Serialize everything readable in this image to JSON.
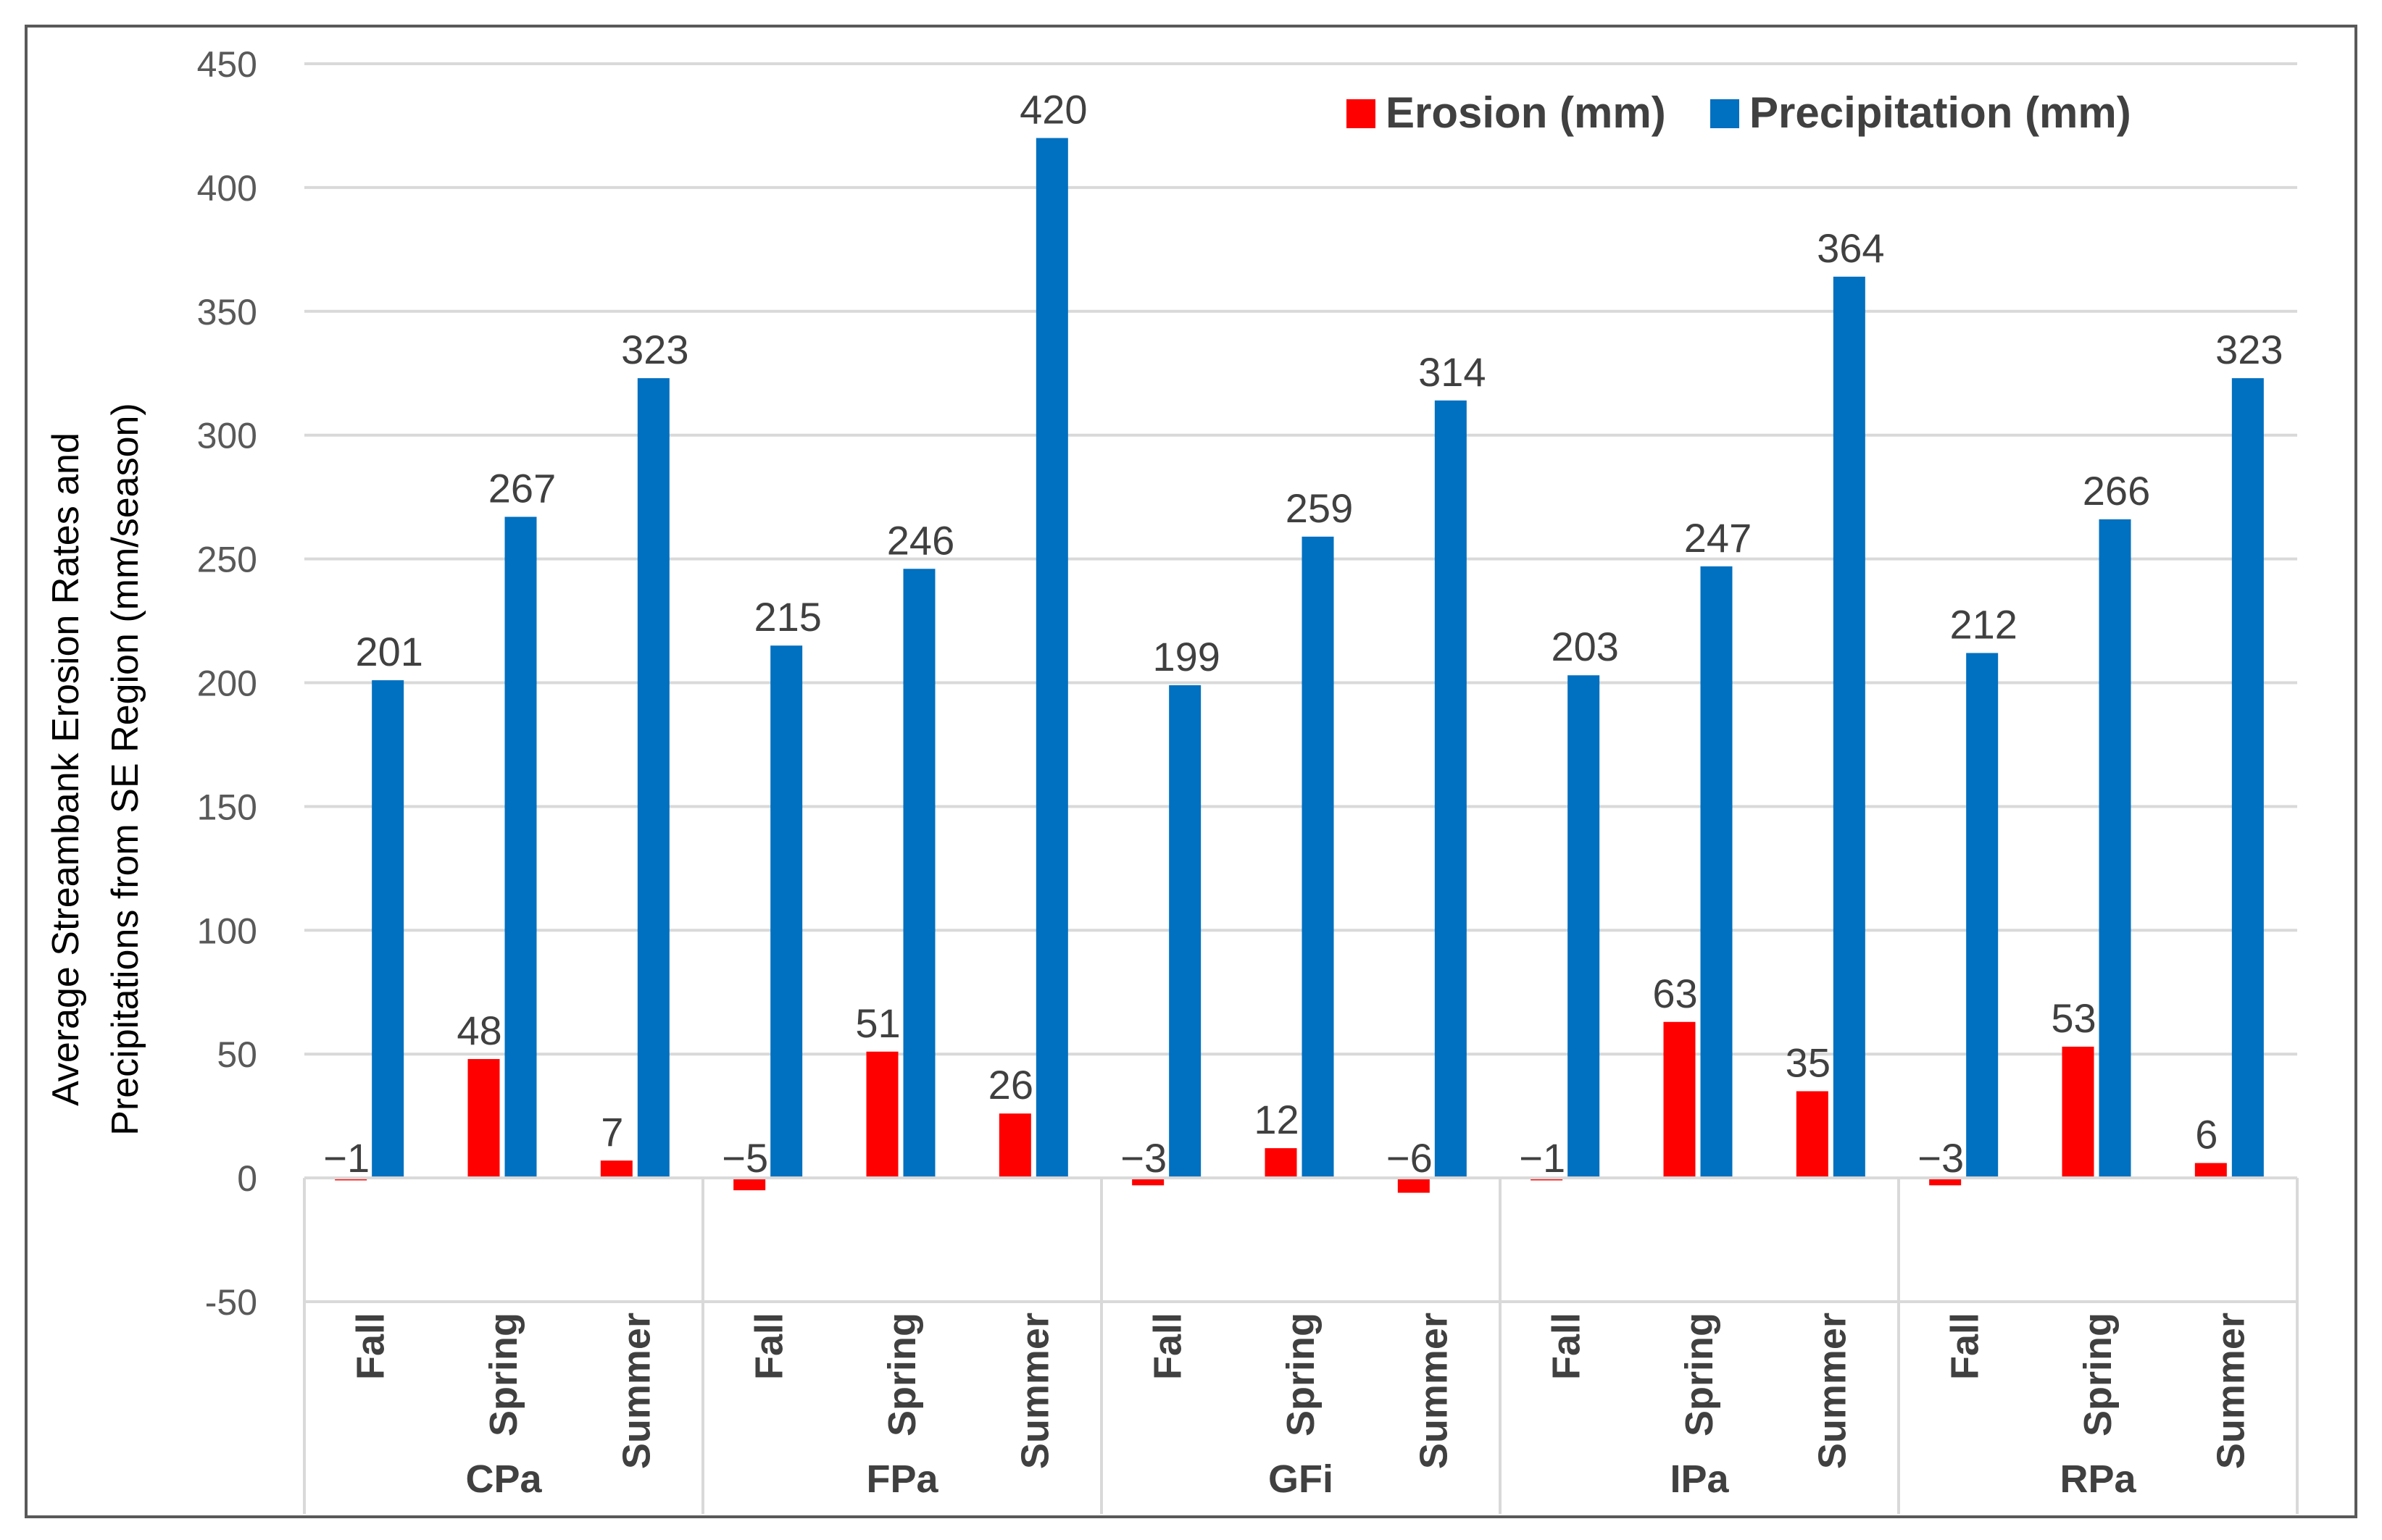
{
  "chart_data": {
    "type": "bar",
    "title": "",
    "ylabel_lines": [
      "Average  Streambank Erosion Rates and",
      "Precipitations from SE Region (mm/season)"
    ],
    "xlabel": "",
    "ylim": [
      -50,
      450
    ],
    "yticks": [
      -50,
      0,
      50,
      100,
      150,
      200,
      250,
      300,
      350,
      400,
      450
    ],
    "grid": true,
    "legend_position": "top-right",
    "groups": [
      {
        "name": "CPa",
        "categories": [
          "Fall",
          "Spring",
          "Summer"
        ]
      },
      {
        "name": "FPa",
        "categories": [
          "Fall",
          "Spring",
          "Summer"
        ]
      },
      {
        "name": "GFi",
        "categories": [
          "Fall",
          "Spring",
          "Summer"
        ]
      },
      {
        "name": "IPa",
        "categories": [
          "Fall",
          "Spring",
          "Summer"
        ]
      },
      {
        "name": "RPa",
        "categories": [
          "Fall",
          "Spring",
          "Summer"
        ]
      }
    ],
    "series": [
      {
        "name": "Erosion (mm)",
        "color": "#ff0000",
        "values": [
          -1,
          48,
          7,
          -5,
          51,
          26,
          -3,
          12,
          -6,
          -1,
          63,
          35,
          -3,
          53,
          6
        ],
        "labels": [
          "−1",
          "48",
          "7",
          "−5",
          "51",
          "26",
          "−3",
          "12",
          "−6",
          "−1",
          "63",
          "35",
          "−3",
          "53",
          "6"
        ]
      },
      {
        "name": "Precipitation (mm)",
        "color": "#0070c0",
        "values": [
          201,
          267,
          323,
          215,
          246,
          420,
          199,
          259,
          314,
          203,
          247,
          364,
          212,
          266,
          323
        ],
        "labels": [
          "201",
          "267",
          "323",
          "215",
          "246",
          "420",
          "199",
          "259",
          "314",
          "203",
          "247",
          "364",
          "212",
          "266",
          "323"
        ]
      }
    ]
  }
}
